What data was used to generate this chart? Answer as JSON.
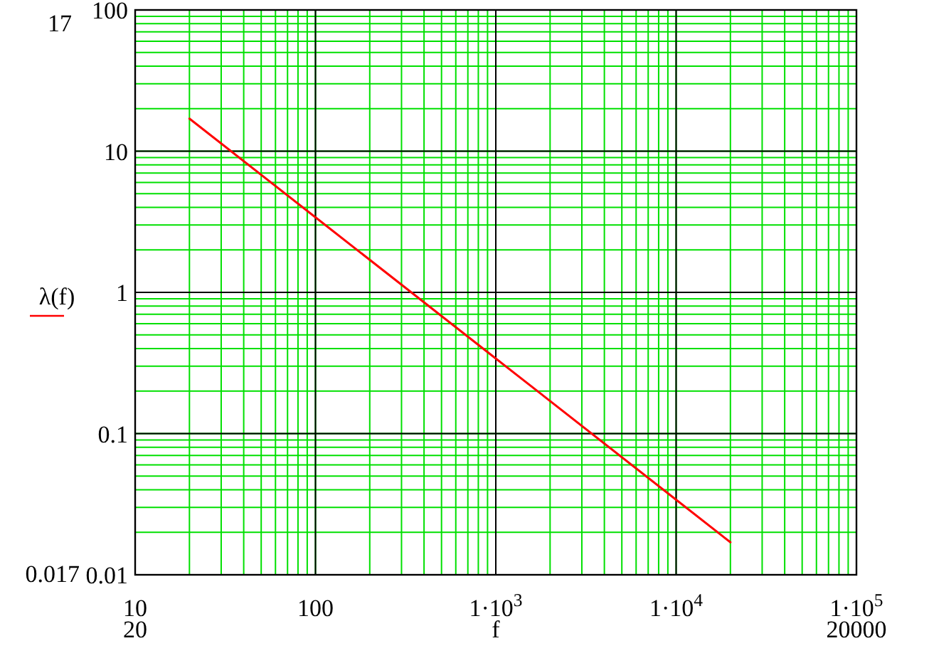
{
  "chart_data": {
    "type": "line",
    "ylabel": "λ(f)",
    "xlabel": "f",
    "x": [
      20,
      100,
      1000,
      10000,
      20000
    ],
    "series": [
      {
        "color": "#ff0000",
        "values": [
          17,
          3.4,
          0.34,
          0.034,
          0.017
        ]
      }
    ],
    "log": "xy",
    "xlim": [
      10,
      100000
    ],
    "ylim": [
      0.01,
      100
    ],
    "xticks": [
      10,
      100,
      {
        "value": 1000,
        "label": "1·10$^{3}$"
      },
      {
        "value": 10000,
        "label": "1·10$^{4}$"
      },
      {
        "value": 100000,
        "label": "1·10$^{5}$"
      }
    ],
    "yticks": [
      0.01,
      0.1,
      1,
      10,
      100
    ],
    "grid": true,
    "marker": "none",
    "line_style": "solid",
    "annotations": [
      "17",
      "0.017",
      "20",
      "20000"
    ]
  }
}
